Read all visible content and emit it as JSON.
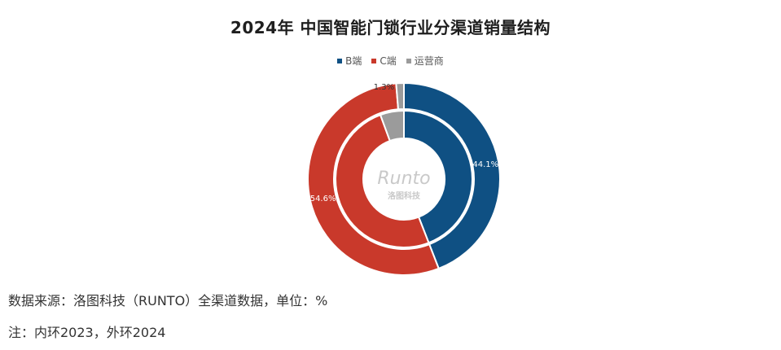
{
  "chart_data": {
    "type": "pie",
    "subtype": "double-donut",
    "title": "2024年 中国智能门锁行业分渠道销量结构",
    "categories": [
      "B端",
      "C端",
      "运营商"
    ],
    "colors": [
      "#0f5083",
      "#c9392b",
      "#9b9b9b"
    ],
    "series": [
      {
        "ring": "inner",
        "values": [
          44.1,
          50.3,
          5.6
        ]
      },
      {
        "ring": "outer",
        "values": [
          44.1,
          54.6,
          1.3
        ]
      }
    ],
    "labels": [
      {
        "category": "B端",
        "text": "44.1%"
      },
      {
        "category": "C端",
        "text": "54.6%"
      },
      {
        "category": "运营商",
        "text": "1.3%"
      }
    ],
    "legend_position": "top-center"
  },
  "watermark": {
    "brand": "RUNTO",
    "brand_text": "Runto",
    "cn": "洛图科技"
  },
  "notes": {
    "source": "数据来源：洛图科技（RUNTO）全渠道数据，单位：%",
    "rings": "注：内环2023，外环2024"
  }
}
